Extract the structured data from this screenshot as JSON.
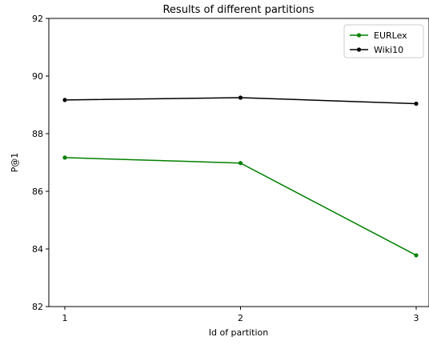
{
  "chart_data": {
    "type": "line",
    "title": "Results of different partitions",
    "xlabel": "Id of partition",
    "ylabel": "P@1",
    "x": [
      1,
      2,
      3
    ],
    "x_tick_labels": [
      "1",
      "2",
      "3"
    ],
    "ylim": [
      82,
      92
    ],
    "y_ticks": [
      82,
      84,
      86,
      88,
      90,
      92
    ],
    "y_tick_labels": [
      "82",
      "84",
      "86",
      "88",
      "90",
      "92"
    ],
    "grid": false,
    "legend_position": "top-right",
    "series": [
      {
        "name": "EURLex",
        "color": "#008000",
        "values": [
          87.17,
          86.98,
          83.78
        ]
      },
      {
        "name": "Wiki10",
        "color": "#000000",
        "values": [
          89.17,
          89.25,
          89.04
        ]
      }
    ]
  }
}
